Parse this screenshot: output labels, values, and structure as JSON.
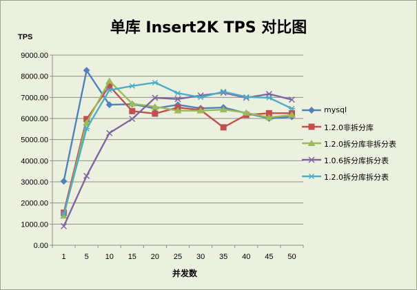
{
  "chart_data": {
    "type": "line",
    "title": "单库 Insert2K TPS 对比图",
    "ylabel": "TPS",
    "xlabel": "并发数",
    "ylim": [
      0,
      9000
    ],
    "yticks": [
      "0.00",
      "1000.00",
      "2000.00",
      "3000.00",
      "4000.00",
      "5000.00",
      "6000.00",
      "7000.00",
      "8000.00",
      "9000.00"
    ],
    "categories": [
      "1",
      "5",
      "10",
      "15",
      "20",
      "25",
      "30",
      "35",
      "40",
      "45",
      "50"
    ],
    "grid": "horizontal",
    "legend_position": "right",
    "series": [
      {
        "name": "mysql",
        "color": "#4f81bd",
        "marker": "diamond",
        "values": [
          3030,
          8280,
          6650,
          6680,
          6480,
          6650,
          6480,
          6520,
          6250,
          6000,
          6080
        ]
      },
      {
        "name": "1.2.0非拆分库",
        "color": "#c0504d",
        "marker": "square",
        "values": [
          1540,
          5970,
          7540,
          6350,
          6230,
          6520,
          6400,
          5580,
          6170,
          6250,
          6250
        ]
      },
      {
        "name": "1.2.0拆分库非拆分表",
        "color": "#9bbb59",
        "marker": "triangle",
        "values": [
          1390,
          5800,
          7780,
          6700,
          6560,
          6370,
          6370,
          6420,
          6270,
          6050,
          6170
        ]
      },
      {
        "name": "1.0.6拆分库拆分表",
        "color": "#8064a2",
        "marker": "x",
        "values": [
          900,
          3280,
          5310,
          5980,
          6980,
          6920,
          7090,
          7220,
          6980,
          7160,
          6890
        ]
      },
      {
        "name": "1.2.0拆分库拆分表",
        "color": "#4bacc6",
        "marker": "star",
        "values": [
          1480,
          5520,
          7340,
          7540,
          7700,
          7200,
          7000,
          7270,
          7020,
          6980,
          6470
        ]
      }
    ]
  }
}
